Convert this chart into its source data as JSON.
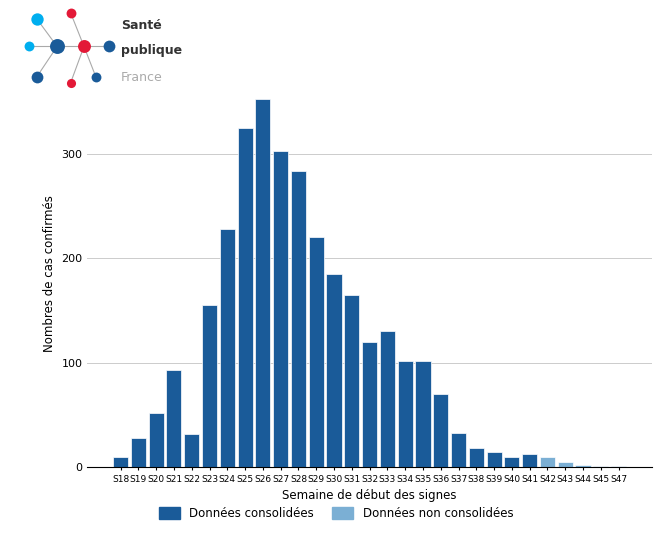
{
  "weeks": [
    "S18",
    "S19",
    "S20",
    "S21",
    "S22",
    "S23",
    "S24",
    "S25",
    "S26",
    "S27",
    "S28",
    "S29",
    "S30",
    "S31",
    "S32",
    "S33",
    "S34",
    "S35",
    "S36",
    "S37",
    "S38",
    "S39",
    "S40",
    "S41",
    "S42",
    "S43",
    "S44",
    "S45",
    "S47"
  ],
  "values": [
    10,
    28,
    52,
    93,
    32,
    155,
    228,
    325,
    352,
    303,
    283,
    220,
    185,
    165,
    120,
    130,
    102,
    102,
    70,
    33,
    18,
    15,
    10,
    13,
    10,
    5,
    2,
    1,
    1
  ],
  "consolidated_color": "#1A5B99",
  "non_consolidated_color": "#7BAFD4",
  "non_consolidated_weeks": [
    "S42",
    "S43",
    "S44",
    "S45",
    "S47"
  ],
  "ylabel": "Nombres de cas confirmés",
  "xlabel": "Semaine de début des signes",
  "ylim": [
    0,
    370
  ],
  "yticks": [
    0,
    100,
    200,
    300
  ],
  "legend_consolidated": "Données consolidées",
  "legend_non_consolidated": "Données non consolidées",
  "grid_color": "#cccccc",
  "logo_text_sante": "Santé",
  "logo_text_publique": "publique",
  "logo_text_france": "France"
}
